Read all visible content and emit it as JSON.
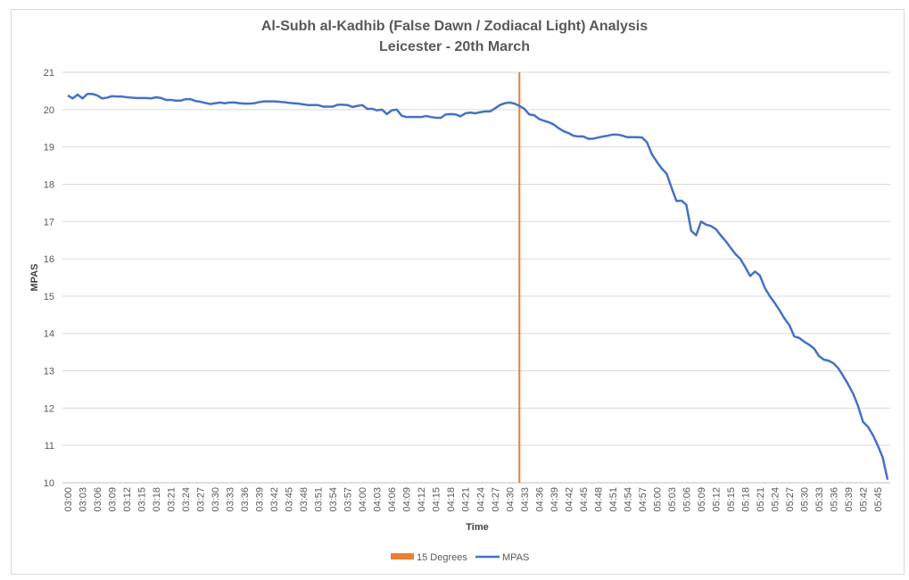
{
  "chart_data": {
    "type": "line",
    "title": "Al-Subh al-Kadhib (False Dawn / Zodiacal Light) Analysis",
    "subtitle": "Leicester - 20th March",
    "xlabel": "Time",
    "ylabel": "MPAS",
    "ylim": [
      10,
      21
    ],
    "yticks": [
      10,
      11,
      12,
      13,
      14,
      15,
      16,
      17,
      18,
      19,
      20,
      21
    ],
    "grid": true,
    "legend_position": "bottom",
    "x_tick_labels": [
      "03:00",
      "03:03",
      "03:06",
      "03:09",
      "03:12",
      "03:15",
      "03:18",
      "03:21",
      "03:24",
      "03:27",
      "03:30",
      "03:33",
      "03:36",
      "03:39",
      "03:42",
      "03:45",
      "03:48",
      "03:51",
      "03:54",
      "03:57",
      "04:00",
      "04:03",
      "04:06",
      "04:09",
      "04:12",
      "04:15",
      "04:18",
      "04:21",
      "04:24",
      "04:27",
      "04:30",
      "04:33",
      "04:36",
      "04:39",
      "04:42",
      "04:45",
      "04:48",
      "04:51",
      "04:54",
      "04:57",
      "05:00",
      "05:03",
      "05:06",
      "05:09",
      "05:12",
      "05:15",
      "05:18",
      "05:21",
      "05:24",
      "05:27",
      "05:30",
      "05:33",
      "05:36",
      "05:39",
      "05:42",
      "05:45"
    ],
    "x_start": "03:00",
    "x_step_minutes": 1,
    "series": [
      {
        "name": "MPAS",
        "color": "#4472c4",
        "type": "line",
        "values": [
          20.38,
          20.3,
          20.4,
          20.3,
          20.42,
          20.42,
          20.38,
          20.3,
          20.32,
          20.36,
          20.35,
          20.35,
          20.33,
          20.32,
          20.31,
          20.31,
          20.31,
          20.3,
          20.33,
          20.31,
          20.26,
          20.26,
          20.24,
          20.24,
          20.28,
          20.28,
          20.23,
          20.21,
          20.18,
          20.15,
          20.17,
          20.19,
          20.17,
          20.19,
          20.19,
          20.17,
          20.16,
          20.16,
          20.17,
          20.2,
          20.22,
          20.22,
          20.22,
          20.21,
          20.2,
          20.18,
          20.17,
          20.16,
          20.14,
          20.12,
          20.12,
          20.12,
          20.08,
          20.08,
          20.08,
          20.13,
          20.13,
          20.12,
          20.07,
          20.1,
          20.12,
          20.02,
          20.02,
          19.98,
          20.0,
          19.88,
          19.98,
          20.0,
          19.84,
          19.8,
          19.8,
          19.8,
          19.8,
          19.83,
          19.8,
          19.78,
          19.78,
          19.87,
          19.88,
          19.87,
          19.82,
          19.9,
          19.92,
          19.9,
          19.93,
          19.95,
          19.95,
          20.03,
          20.12,
          20.17,
          20.19,
          20.16,
          20.1,
          20.02,
          19.87,
          19.85,
          19.75,
          19.7,
          19.66,
          19.6,
          19.5,
          19.42,
          19.37,
          19.3,
          19.28,
          19.28,
          19.22,
          19.22,
          19.25,
          19.28,
          19.3,
          19.33,
          19.33,
          19.3,
          19.26,
          19.26,
          19.26,
          19.25,
          19.12,
          18.8,
          18.6,
          18.42,
          18.28,
          17.9,
          17.55,
          17.56,
          17.45,
          16.75,
          16.63,
          17.0,
          16.92,
          16.88,
          16.8,
          16.63,
          16.48,
          16.3,
          16.13,
          16.0,
          15.78,
          15.54,
          15.66,
          15.55,
          15.22,
          15.0,
          14.82,
          14.62,
          14.4,
          14.22,
          13.92,
          13.88,
          13.78,
          13.7,
          13.6,
          13.4,
          13.3,
          13.27,
          13.2,
          13.06,
          12.85,
          12.63,
          12.38,
          12.05,
          11.63,
          11.5,
          11.28,
          11.0,
          10.68,
          10.08
        ]
      },
      {
        "name": "15 Degrees",
        "color": "#ed7d31",
        "type": "vertical-line",
        "x": "04:32"
      }
    ]
  }
}
